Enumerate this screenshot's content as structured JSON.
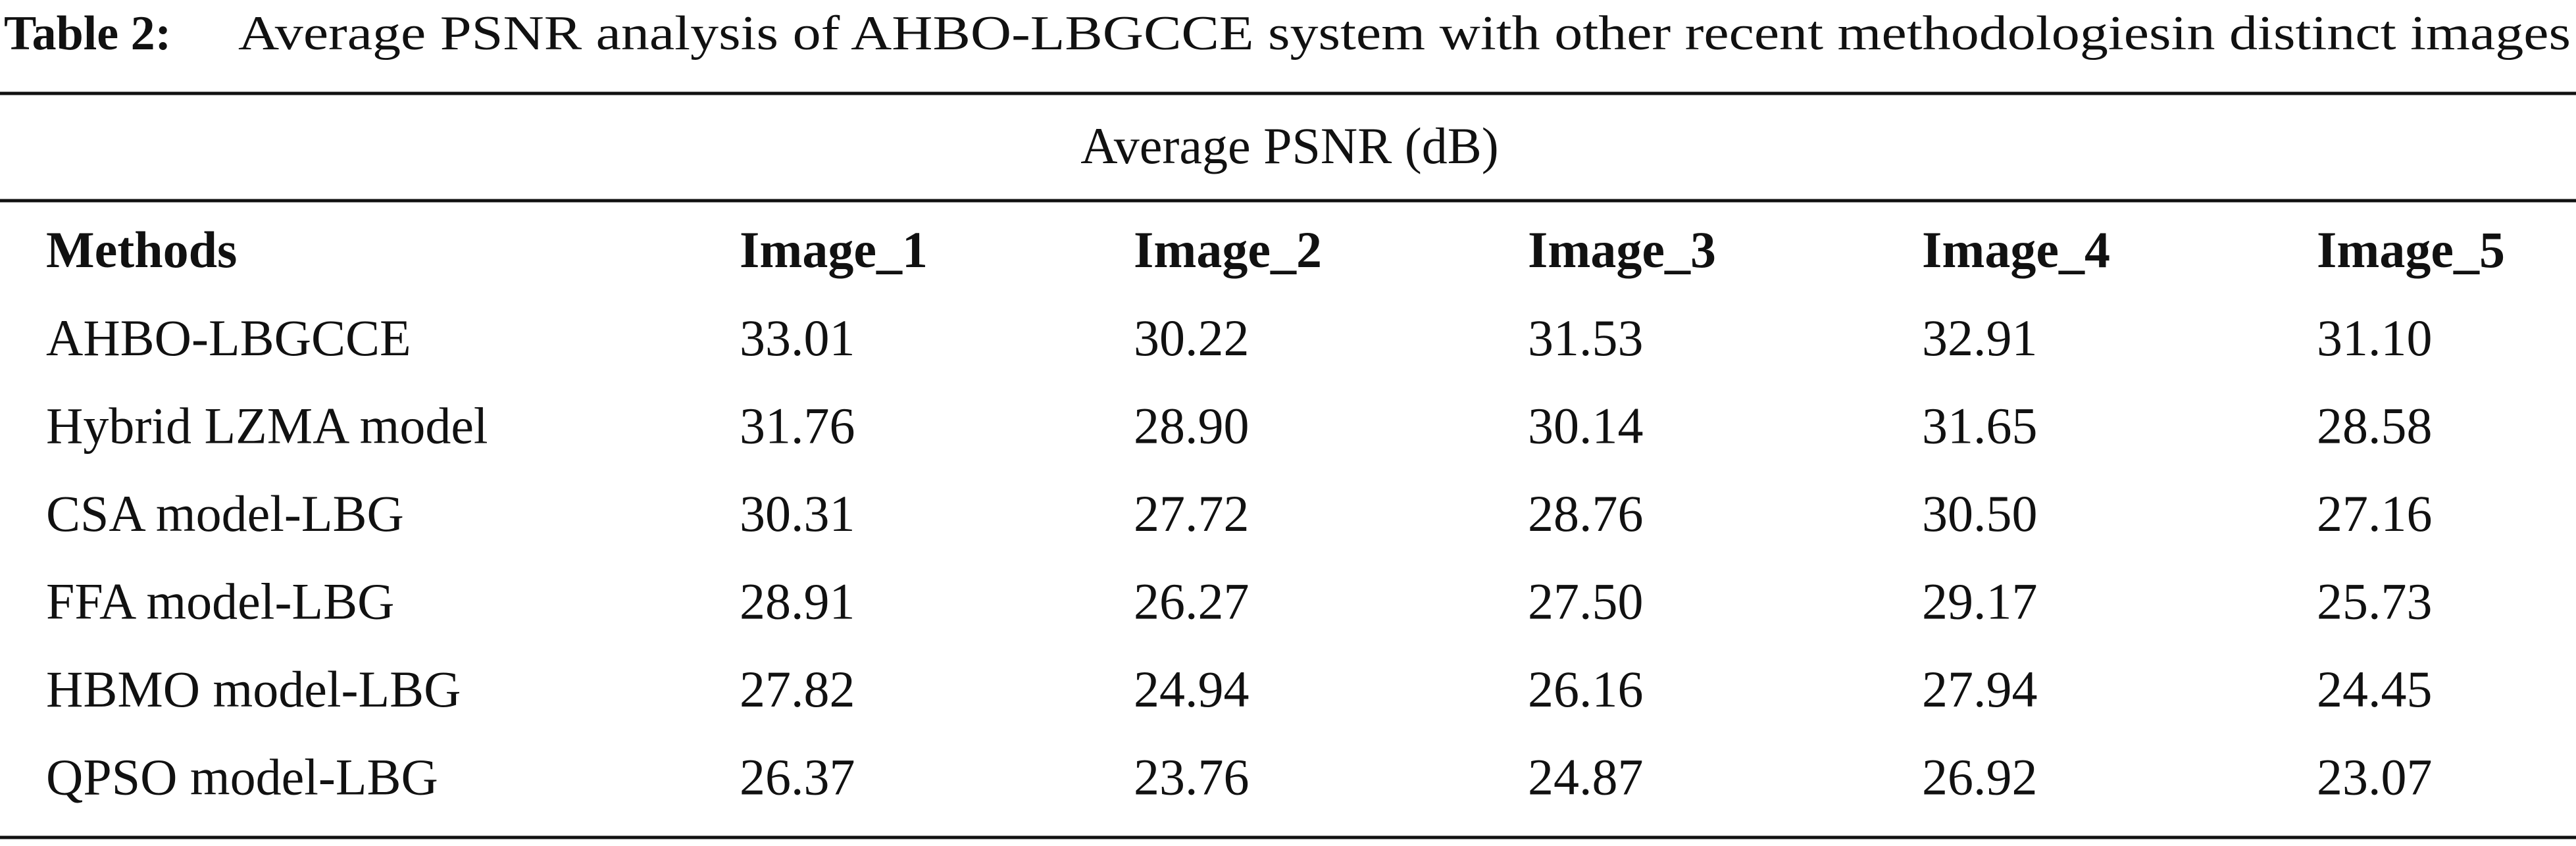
{
  "title": {
    "label": "Table 2:",
    "text": "Average PSNR analysis of AHBO-LBGCCE system with other recent methodologiesin distinct images"
  },
  "table": {
    "group_header": "Average PSNR (dB)",
    "columns": [
      "Methods",
      "Image_1",
      "Image_2",
      "Image_3",
      "Image_4",
      "Image_5"
    ],
    "rows": [
      [
        "AHBO-LBGCCE",
        "33.01",
        "30.22",
        "31.53",
        "32.91",
        "31.10"
      ],
      [
        "Hybrid LZMA model",
        "31.76",
        "28.90",
        "30.14",
        "31.65",
        "28.58"
      ],
      [
        "CSA model-LBG",
        "30.31",
        "27.72",
        "28.76",
        "30.50",
        "27.16"
      ],
      [
        "FFA model-LBG",
        "28.91",
        "26.27",
        "27.50",
        "29.17",
        "25.73"
      ],
      [
        "HBMO model-LBG",
        "27.82",
        "24.94",
        "26.16",
        "27.94",
        "24.45"
      ],
      [
        "QPSO model-LBG",
        "26.37",
        "23.76",
        "24.87",
        "26.92",
        "23.07"
      ]
    ]
  }
}
